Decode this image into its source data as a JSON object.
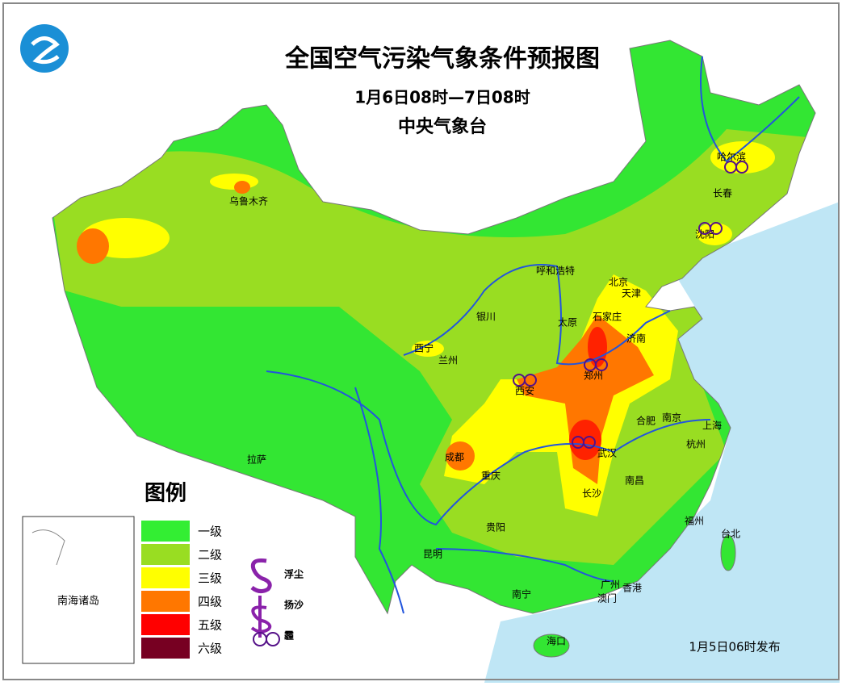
{
  "header": {
    "title": "全国空气污染气象条件预报图",
    "period": "1月6日08时—7日08时",
    "issuer": "中央气象台"
  },
  "cities": [
    "乌鲁木齐",
    "哈尔滨",
    "长春",
    "沈阳",
    "呼和浩特",
    "北京",
    "天津",
    "石家庄",
    "太原",
    "济南",
    "银川",
    "西宁",
    "兰州",
    "郑州",
    "西安",
    "合肥",
    "南京",
    "上海",
    "杭州",
    "成都",
    "武汉",
    "重庆",
    "拉萨",
    "长沙",
    "南昌",
    "福州",
    "贵阳",
    "台北",
    "昆明",
    "南宁",
    "广州",
    "香港",
    "澳门",
    "海口"
  ],
  "legend": {
    "title": "图例",
    "levels": [
      "一级",
      "二级",
      "三级",
      "四级",
      "五级",
      "六级"
    ],
    "symbols": [
      "浮尘",
      "扬沙",
      "霾"
    ]
  },
  "inset": "南海诸岛",
  "issued": "1月5日06时发布"
}
